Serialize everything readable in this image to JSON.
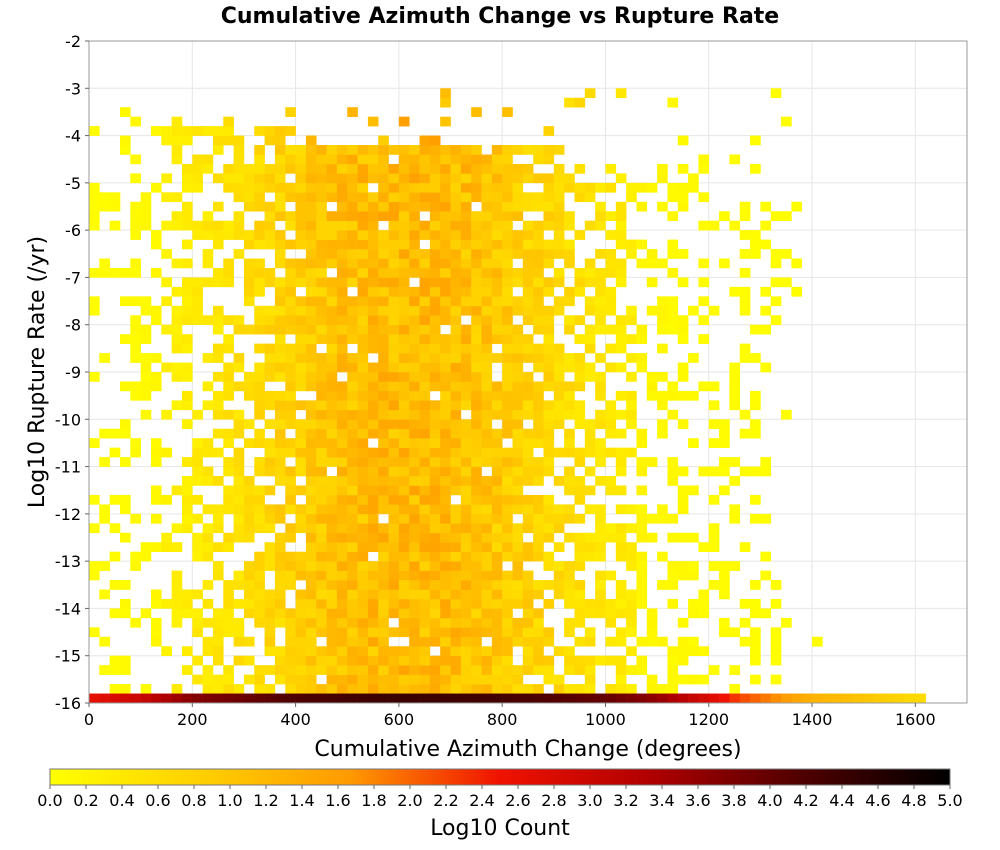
{
  "chart_data": {
    "type": "heatmap",
    "title": "Cumulative Azimuth Change vs Rupture Rate",
    "xlabel": "Cumulative Azimuth Change (degrees)",
    "ylabel": "Log10 Rupture Rate (/yr)",
    "xlim": [
      0,
      1700
    ],
    "ylim": [
      -16,
      -2
    ],
    "x_ticks": [
      "0",
      "200",
      "400",
      "600",
      "800",
      "1000",
      "1200",
      "1400",
      "1600"
    ],
    "y_ticks": [
      "-2",
      "-3",
      "-4",
      "-5",
      "-6",
      "-7",
      "-8",
      "-9",
      "-10",
      "-11",
      "-12",
      "-13",
      "-14",
      "-15",
      "-16"
    ],
    "grid": true,
    "bin_width_degrees": 20,
    "bin_height_log10": 0.2,
    "colorbar": {
      "label": "Log10 Count",
      "range": [
        0.0,
        5.0
      ],
      "colormap": [
        "#ffff00",
        "#ffd000",
        "#ff9a00",
        "#f01200",
        "#b00000",
        "#500000",
        "#000000"
      ],
      "tick_labels": [
        "0.0",
        "0.2",
        "0.4",
        "0.6",
        "0.8",
        "1.0",
        "1.2",
        "1.4",
        "1.6",
        "1.8",
        "2.0",
        "2.2",
        "2.4",
        "2.6",
        "2.8",
        "3.0",
        "3.2",
        "3.4",
        "3.6",
        "3.8",
        "4.0",
        "4.2",
        "4.4",
        "4.6",
        "4.8",
        "5.0"
      ]
    },
    "bottom_row": {
      "y": -16,
      "x_start": 0,
      "x_end": 1620,
      "profile": [
        [
          0,
          2.6
        ],
        [
          100,
          3.0
        ],
        [
          200,
          3.7
        ],
        [
          400,
          4.2
        ],
        [
          600,
          4.4
        ],
        [
          800,
          4.3
        ],
        [
          1000,
          4.0
        ],
        [
          1100,
          3.6
        ],
        [
          1200,
          2.8
        ],
        [
          1260,
          2.2
        ],
        [
          1320,
          1.8
        ],
        [
          1400,
          1.3
        ],
        [
          1500,
          1.0
        ],
        [
          1620,
          0.6
        ]
      ]
    },
    "density_model": {
      "peak_x": 620,
      "peak_y": -5.1,
      "description": "log10 count per bin, roughly 0-1.7 in the scattered region above the bottom row"
    }
  }
}
